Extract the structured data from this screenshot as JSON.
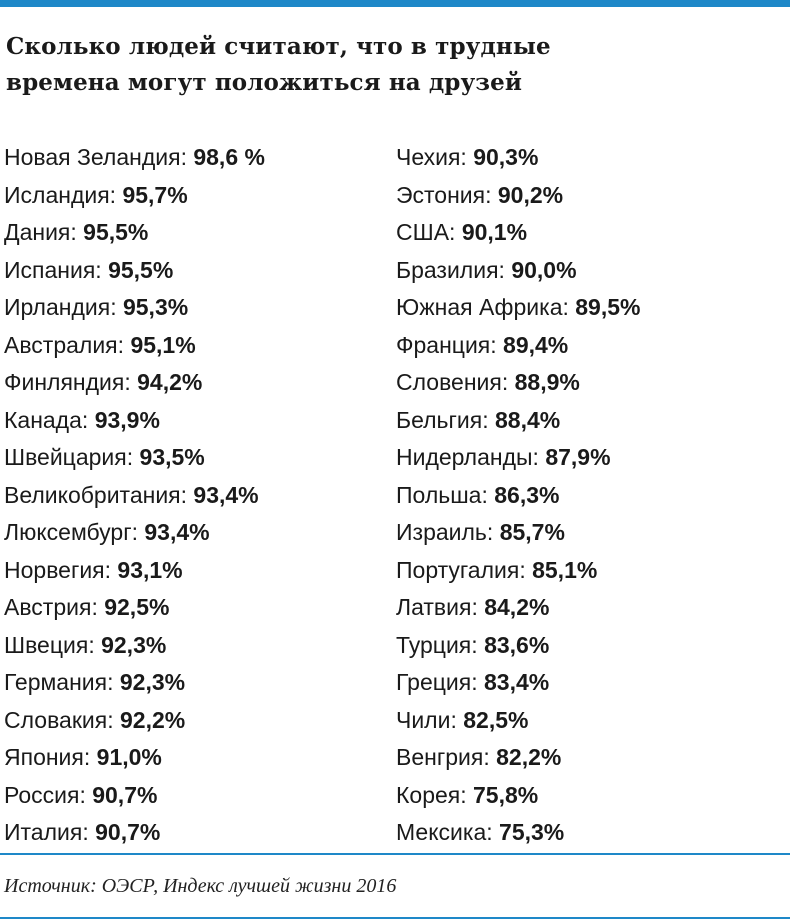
{
  "title_lines": [
    "Сколько людей считают, что в трудные",
    "времена могут положиться на друзей"
  ],
  "colors": {
    "accent": "#1e88c8",
    "text": "#1a1a1a"
  },
  "left_column": [
    {
      "country": "Новая Зеландия",
      "value": "98,6 %"
    },
    {
      "country": "Исландия",
      "value": "95,7%"
    },
    {
      "country": "Дания",
      "value": "95,5%"
    },
    {
      "country": "Испания",
      "value": "95,5%"
    },
    {
      "country": "Ирландия",
      "value": "95,3%"
    },
    {
      "country": "Австралия",
      "value": "95,1%"
    },
    {
      "country": "Финляндия",
      "value": "94,2%"
    },
    {
      "country": "Канада",
      "value": "93,9%"
    },
    {
      "country": "Швейцария",
      "value": "93,5%"
    },
    {
      "country": "Великобритания",
      "value": "93,4%"
    },
    {
      "country": "Люксембург",
      "value": "93,4%"
    },
    {
      "country": "Норвегия",
      "value": "93,1%"
    },
    {
      "country": "Австрия",
      "value": "92,5%"
    },
    {
      "country": "Швеция",
      "value": "92,3%"
    },
    {
      "country": "Германия",
      "value": "92,3%"
    },
    {
      "country": "Словакия",
      "value": "92,2%"
    },
    {
      "country": "Япония",
      "value": "91,0%"
    },
    {
      "country": "Россия",
      "value": "90,7%"
    },
    {
      "country": "Италия",
      "value": "90,7%"
    }
  ],
  "right_column": [
    {
      "country": "Чехия",
      "value": "90,3%"
    },
    {
      "country": "Эстония",
      "value": "90,2%"
    },
    {
      "country": "США",
      "value": "90,1%"
    },
    {
      "country": "Бразилия",
      "value": "90,0%"
    },
    {
      "country": "Южная Африка",
      "value": "89,5%"
    },
    {
      "country": "Франция",
      "value": "89,4%"
    },
    {
      "country": "Словения",
      "value": "88,9%"
    },
    {
      "country": "Бельгия",
      "value": "88,4%"
    },
    {
      "country": "Нидерланды",
      "value": "87,9%"
    },
    {
      "country": "Польша",
      "value": "86,3%"
    },
    {
      "country": "Израиль",
      "value": "85,7%"
    },
    {
      "country": "Португалия",
      "value": "85,1%"
    },
    {
      "country": "Латвия",
      "value": "84,2%"
    },
    {
      "country": "Турция",
      "value": "83,6%"
    },
    {
      "country": "Греция",
      "value": "83,4%"
    },
    {
      "country": "Чили",
      "value": "82,5%"
    },
    {
      "country": "Венгрия",
      "value": "82,2%"
    },
    {
      "country": "Корея",
      "value": "75,8%"
    },
    {
      "country": "Мексика",
      "value": "75,3%"
    }
  ],
  "source": "Источник: ОЭСР, Индекс лучшей жизни 2016"
}
